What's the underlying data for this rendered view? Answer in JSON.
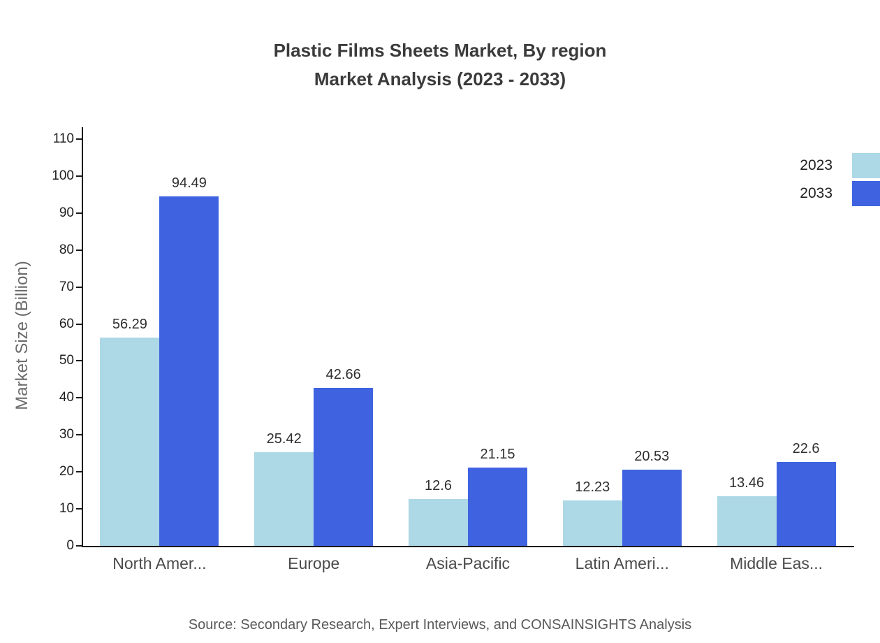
{
  "title": {
    "line1": "Plastic Films Sheets Market, By region",
    "line2": "Market Analysis (2023 - 2033)"
  },
  "chart_data": {
    "type": "bar",
    "categories": [
      "North Amer...",
      "Europe",
      "Asia-Pacific",
      "Latin Ameri...",
      "Middle Eas..."
    ],
    "series": [
      {
        "name": "2023",
        "color": "#add8e6",
        "values": [
          56.29,
          25.42,
          12.6,
          12.23,
          13.46
        ]
      },
      {
        "name": "2033",
        "color": "#3f63e0",
        "values": [
          94.49,
          42.66,
          21.15,
          20.53,
          22.6
        ]
      }
    ],
    "title": "Plastic Films Sheets Market, By region Market Analysis (2023 - 2033)",
    "xlabel": "",
    "ylabel": "Market Size (Billion)",
    "ylim": [
      0,
      110
    ],
    "ytick_step": 10,
    "grid": false,
    "legend_position": "top-right"
  },
  "source": "Source: Secondary Research, Expert Interviews, and CONSAINSIGHTS Analysis"
}
